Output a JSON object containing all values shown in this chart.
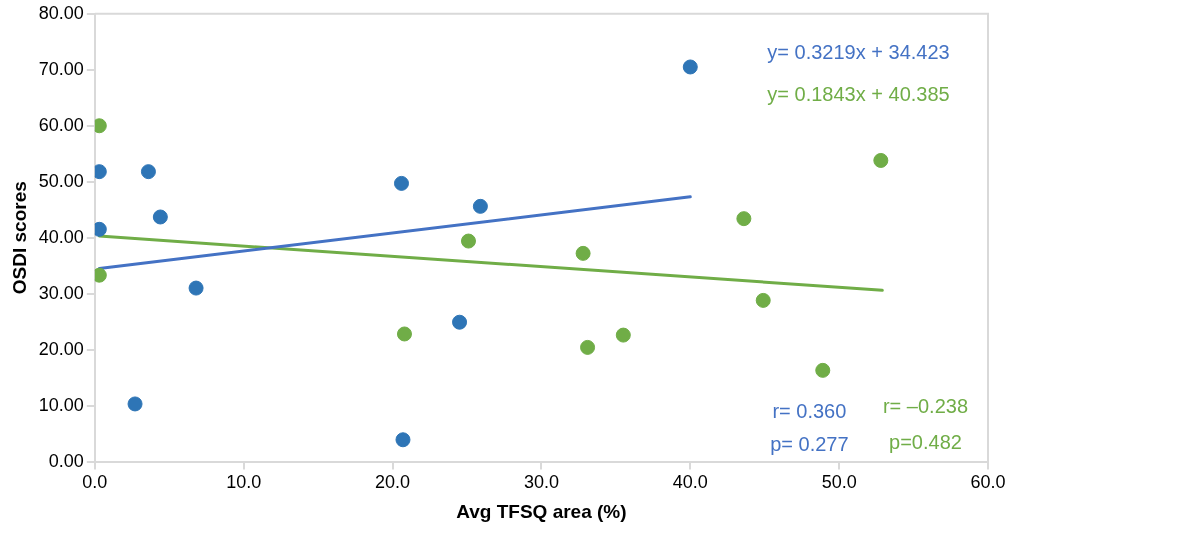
{
  "chart_data": {
    "type": "scatter",
    "xlabel": "Avg TFSQ area (%)",
    "ylabel": "OSDI scores",
    "xlim": [
      0,
      60
    ],
    "xticks": [
      {
        "value": 0,
        "label": "0.0"
      },
      {
        "value": 10,
        "label": "10.0"
      },
      {
        "value": 20,
        "label": "20.0"
      },
      {
        "value": 30,
        "label": "30.0"
      },
      {
        "value": 40,
        "label": "40.0"
      },
      {
        "value": 50,
        "label": "50.0"
      },
      {
        "value": 60,
        "label": "60.0"
      }
    ],
    "ylim": [
      0,
      80
    ],
    "yticks": [
      {
        "value": 0,
        "label": "0.00"
      },
      {
        "value": 10,
        "label": "10.00"
      },
      {
        "value": 20,
        "label": "20.00"
      },
      {
        "value": 30,
        "label": "30.00"
      },
      {
        "value": 40,
        "label": "40.00"
      },
      {
        "value": 50,
        "label": "50.00"
      },
      {
        "value": 60,
        "label": "60.00"
      },
      {
        "value": 70,
        "label": "70.00"
      },
      {
        "value": 80,
        "label": "80.00"
      }
    ],
    "grid": false,
    "legend": false,
    "marker": "circle",
    "series": [
      {
        "type": "scatter",
        "color": "#2e75b6",
        "x": [
          0.3,
          0.3,
          3.6,
          4.4,
          6.8,
          2.7,
          20.6,
          25.9,
          24.5,
          20.7,
          40.0
        ],
        "values": [
          51.8,
          41.5,
          51.8,
          43.7,
          31.0,
          10.3,
          49.7,
          45.6,
          24.9,
          3.9,
          70.5
        ]
      },
      {
        "type": "scatter",
        "color": "#70ad47",
        "x": [
          0.3,
          0.3,
          20.8,
          25.1,
          32.8,
          33.1,
          35.5,
          43.6,
          44.9,
          48.9,
          52.8
        ],
        "values": [
          60.0,
          33.3,
          22.8,
          39.4,
          37.2,
          20.4,
          22.6,
          43.4,
          28.8,
          16.3,
          53.8
        ]
      },
      {
        "type": "line",
        "marker": "none",
        "color": "#4472c4",
        "x": [
          0.3,
          40.0
        ],
        "values": [
          34.5,
          47.3
        ]
      },
      {
        "type": "line",
        "marker": "none",
        "color": "#70ad47",
        "x": [
          0.3,
          52.9
        ],
        "values": [
          40.3,
          30.6
        ]
      }
    ],
    "annotations": [
      "y= 0.3219x + 34.423",
      "y= 0.1843x + 40.385",
      "r= 0.360",
      "p= 0.277",
      "r= –0.238",
      "p=0.482"
    ]
  }
}
